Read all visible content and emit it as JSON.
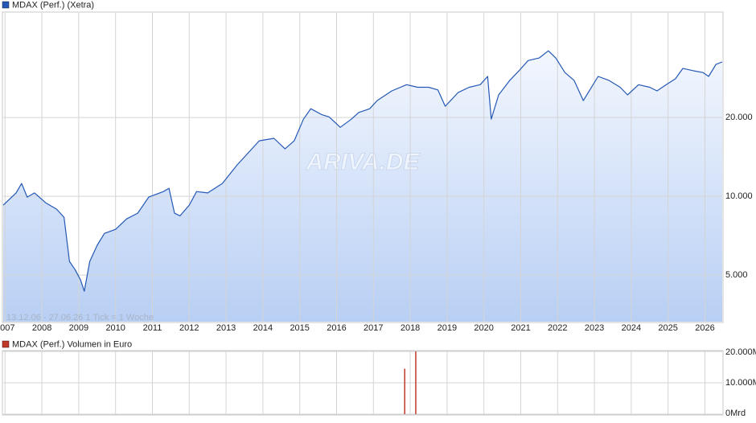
{
  "chart_data": [
    {
      "type": "line",
      "legend": "MDAX (Perf.) (Xetra)",
      "note": "13.12.06 - 27.06.26   1 Tick = 1 Woche",
      "watermark": "ARIVA.DE",
      "log": true,
      "grid": true,
      "x": [
        2006.95,
        2007.3,
        2007.45,
        2007.6,
        2007.8,
        2008.1,
        2008.4,
        2008.6,
        2008.75,
        2008.9,
        2009.05,
        2009.15,
        2009.3,
        2009.5,
        2009.7,
        2010.0,
        2010.3,
        2010.6,
        2010.9,
        2011.3,
        2011.45,
        2011.6,
        2011.75,
        2012.0,
        2012.2,
        2012.5,
        2012.9,
        2013.3,
        2013.6,
        2013.9,
        2014.3,
        2014.6,
        2014.85,
        2015.1,
        2015.3,
        2015.6,
        2015.8,
        2016.1,
        2016.4,
        2016.6,
        2016.9,
        2017.1,
        2017.5,
        2017.9,
        2018.2,
        2018.5,
        2018.75,
        2018.95,
        2019.3,
        2019.6,
        2019.9,
        2020.1,
        2020.2,
        2020.4,
        2020.7,
        2020.95,
        2021.2,
        2021.5,
        2021.75,
        2021.95,
        2022.2,
        2022.45,
        2022.7,
        2022.9,
        2023.1,
        2023.4,
        2023.7,
        2023.9,
        2024.2,
        2024.5,
        2024.7,
        2024.95,
        2025.2,
        2025.4,
        2025.7,
        2025.95,
        2026.1,
        2026.3,
        2026.47
      ],
      "series": [
        {
          "name": "MDAX (Perf.) (Xetra)",
          "color": "#2458b4",
          "values": [
            9250,
            10300,
            11200,
            9930,
            10300,
            9450,
            8930,
            8320,
            5640,
            5250,
            4790,
            4340,
            5640,
            6500,
            7220,
            7480,
            8200,
            8620,
            9930,
            10430,
            10730,
            8620,
            8420,
            9250,
            10430,
            10300,
            11200,
            13180,
            14650,
            16290,
            16650,
            15180,
            16290,
            19700,
            21600,
            20500,
            20100,
            18350,
            19700,
            20900,
            21600,
            23200,
            25270,
            26700,
            26100,
            26100,
            25500,
            22080,
            24900,
            26100,
            26700,
            28700,
            19700,
            24400,
            27700,
            30150,
            33000,
            33750,
            35950,
            33750,
            29700,
            27700,
            23200,
            25800,
            28700,
            27700,
            26100,
            24400,
            26700,
            26100,
            25270,
            26700,
            28100,
            30800,
            30150,
            29700,
            28700,
            31900,
            32600
          ]
        }
      ],
      "xlim": [
        2006.95,
        2026.47
      ],
      "xticks": [
        2007,
        2008,
        2009,
        2010,
        2011,
        2012,
        2013,
        2014,
        2015,
        2016,
        2017,
        2018,
        2019,
        2020,
        2021,
        2022,
        2023,
        2024,
        2025,
        2026
      ],
      "ylim": [
        3320,
        50200
      ],
      "yticks": [
        {
          "value": 5000,
          "label": "5.000"
        },
        {
          "value": 10000,
          "label": "10.000"
        },
        {
          "value": 20000,
          "label": "20.000"
        }
      ]
    },
    {
      "type": "bar",
      "legend": "MDAX (Perf.) Volumen in Euro",
      "grid": true,
      "x": [
        2017.85,
        2018.15
      ],
      "series": [
        {
          "name": "MDAX (Perf.) Volumen in Euro",
          "color": "#c0392b",
          "values": [
            14500,
            20000
          ]
        }
      ],
      "xlim": [
        2006.95,
        2026.47
      ],
      "xticks": [
        2007,
        2008,
        2009,
        2010,
        2011,
        2012,
        2013,
        2014,
        2015,
        2016,
        2017,
        2018,
        2019,
        2020,
        2021,
        2022,
        2023,
        2024,
        2025,
        2026
      ],
      "ylim": [
        0,
        20000
      ],
      "yticks": [
        {
          "value": 0,
          "label": "0Mrd"
        },
        {
          "value": 10000,
          "label": "10.000M"
        },
        {
          "value": 20000,
          "label": "20.000M"
        }
      ]
    }
  ]
}
